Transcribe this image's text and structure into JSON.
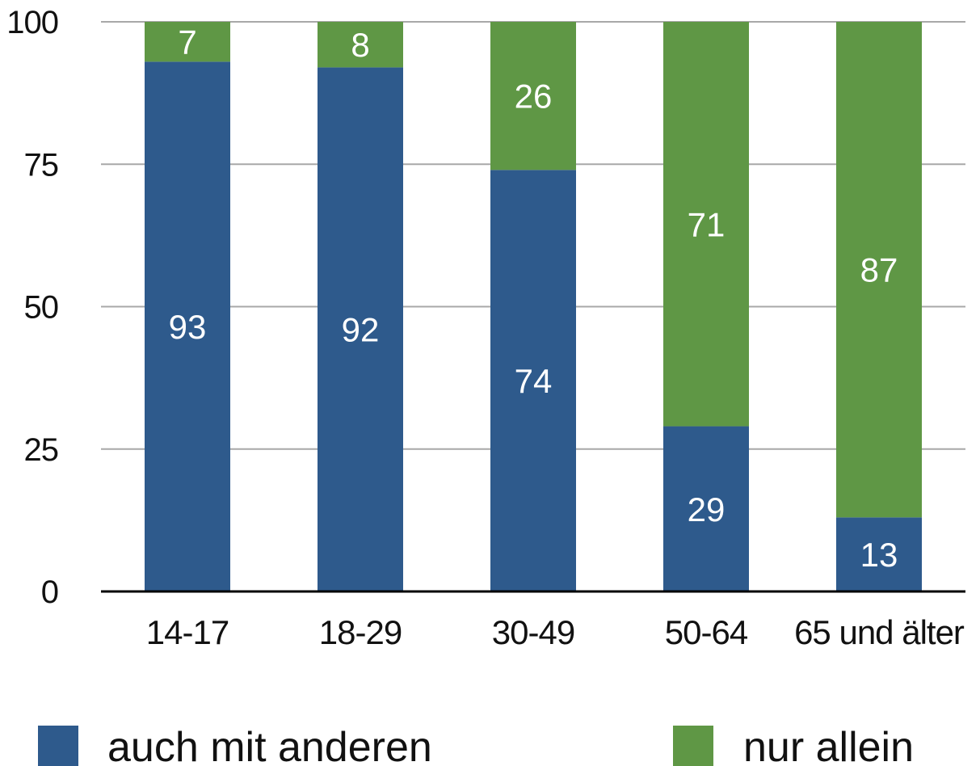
{
  "chart_data": {
    "type": "bar",
    "stacked": true,
    "categories": [
      "14-17",
      "18-29",
      "30-49",
      "50-64",
      "65 und älter"
    ],
    "series": [
      {
        "name": "auch mit anderen",
        "color": "#2e5a8c",
        "values": [
          93,
          92,
          74,
          29,
          13
        ]
      },
      {
        "name": "nur allein",
        "color": "#5f9745",
        "values": [
          7,
          8,
          26,
          71,
          87
        ]
      }
    ],
    "yticks": [
      "0",
      "25",
      "50",
      "75",
      "100"
    ],
    "ylim": [
      0,
      100
    ],
    "grid": true,
    "legend": "bottom"
  }
}
